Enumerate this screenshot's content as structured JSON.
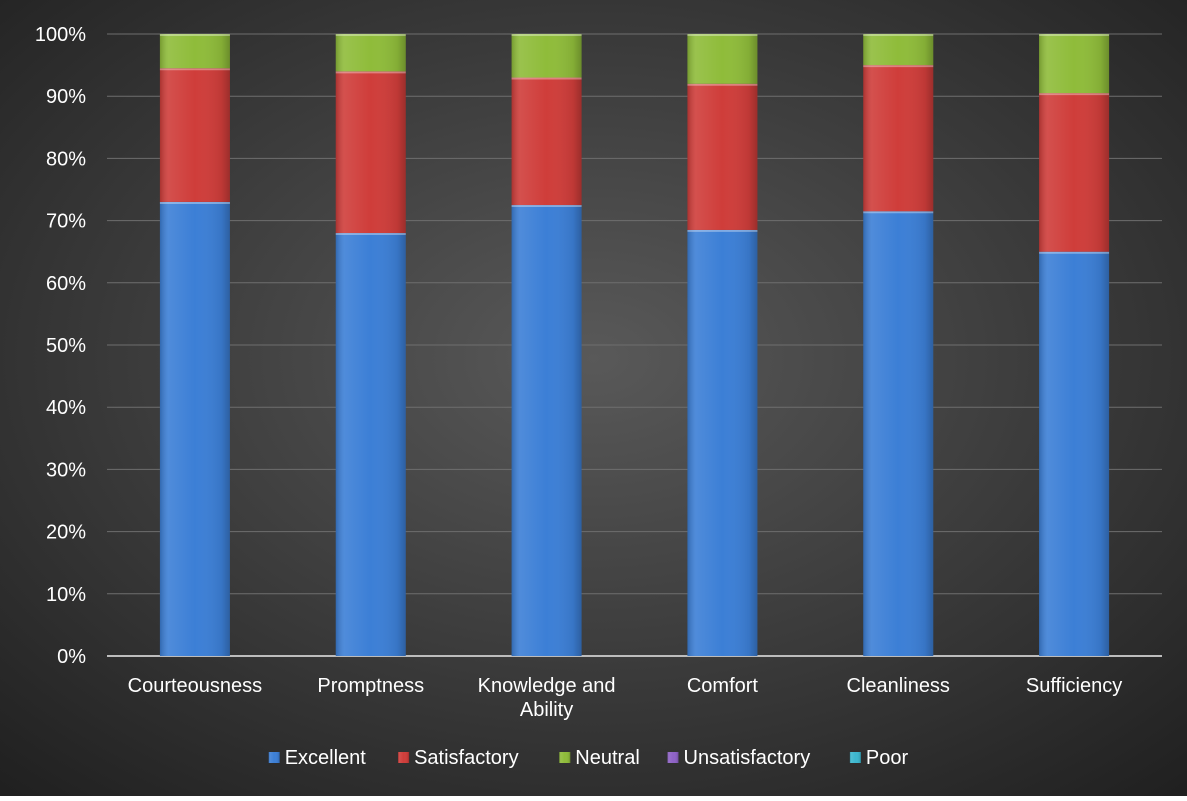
{
  "chart_data": {
    "type": "bar",
    "stacked": true,
    "percent_stacked": true,
    "categories": [
      [
        "Courteousness"
      ],
      [
        "Promptness"
      ],
      [
        "Knowledge and",
        "Ability"
      ],
      [
        "Comfort"
      ],
      [
        "Cleanliness"
      ],
      [
        "Sufficiency"
      ]
    ],
    "series": [
      {
        "name": "Excellent",
        "color": "#3c7fd6",
        "values": [
          73,
          68,
          72.5,
          68.5,
          71.5,
          65
        ]
      },
      {
        "name": "Satisfactory",
        "color": "#cf3d3a",
        "values": [
          21.5,
          26,
          20.5,
          23.5,
          23.5,
          25.5
        ]
      },
      {
        "name": "Neutral",
        "color": "#8fbc3a",
        "values": [
          5.5,
          6,
          7,
          8,
          5,
          9.5
        ]
      },
      {
        "name": "Unsatisfactory",
        "color": "#8e62c6",
        "values": [
          0,
          0,
          0,
          0,
          0,
          0
        ]
      },
      {
        "name": "Poor",
        "color": "#3cb7cf",
        "values": [
          0,
          0,
          0,
          0,
          0,
          0
        ]
      }
    ],
    "y_ticks": [
      "0%",
      "10%",
      "20%",
      "30%",
      "40%",
      "50%",
      "60%",
      "70%",
      "80%",
      "90%",
      "100%"
    ],
    "ylim": [
      0,
      100
    ],
    "grid": true,
    "legend_position": "bottom",
    "background_color": "#3a3a3a",
    "title": "",
    "xlabel": "",
    "ylabel": ""
  }
}
